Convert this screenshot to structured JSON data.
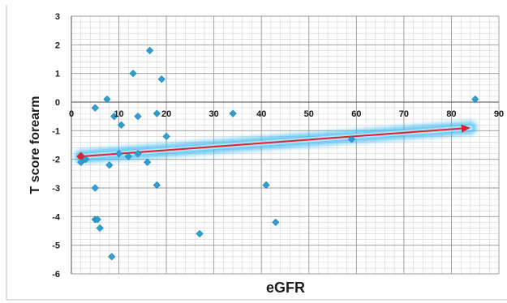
{
  "chart_data": {
    "type": "scatter",
    "title": "",
    "xlabel": "eGFR",
    "ylabel": "T score forearm",
    "xlim": [
      0,
      90
    ],
    "ylim": [
      -6,
      3
    ],
    "x_ticks": [
      0,
      10,
      20,
      30,
      40,
      50,
      60,
      70,
      80,
      90
    ],
    "y_ticks": [
      3,
      2,
      1,
      0,
      -1,
      -2,
      -3,
      -4,
      -5,
      -6
    ],
    "grid": true,
    "marker_color": "#2e9fd6",
    "trend_color": "#e0202a",
    "trend_glow_color": "#3ab8f0",
    "points": [
      {
        "x": 2,
        "y": -2.1
      },
      {
        "x": 3,
        "y": -2.0
      },
      {
        "x": 5,
        "y": -0.2
      },
      {
        "x": 5,
        "y": -3.0
      },
      {
        "x": 5,
        "y": -4.1
      },
      {
        "x": 5.5,
        "y": -4.1
      },
      {
        "x": 6,
        "y": -4.4
      },
      {
        "x": 7.5,
        "y": 0.1
      },
      {
        "x": 8,
        "y": -2.2
      },
      {
        "x": 8.5,
        "y": -5.4
      },
      {
        "x": 9,
        "y": -0.5
      },
      {
        "x": 10,
        "y": -1.8
      },
      {
        "x": 10.5,
        "y": -0.8
      },
      {
        "x": 12,
        "y": -1.9
      },
      {
        "x": 13,
        "y": 1.0
      },
      {
        "x": 14,
        "y": -1.8
      },
      {
        "x": 14,
        "y": -0.5
      },
      {
        "x": 16,
        "y": -2.1
      },
      {
        "x": 16.5,
        "y": 1.8
      },
      {
        "x": 18,
        "y": -2.9
      },
      {
        "x": 18,
        "y": -0.4
      },
      {
        "x": 19,
        "y": 0.8
      },
      {
        "x": 20,
        "y": -1.2
      },
      {
        "x": 27,
        "y": -4.6
      },
      {
        "x": 34,
        "y": -0.4
      },
      {
        "x": 41,
        "y": -2.9
      },
      {
        "x": 43,
        "y": -4.2
      },
      {
        "x": 59,
        "y": -1.3
      },
      {
        "x": 85,
        "y": 0.1
      }
    ],
    "trendline": {
      "x": [
        2,
        84
      ],
      "y": [
        -1.9,
        -0.9
      ]
    }
  }
}
